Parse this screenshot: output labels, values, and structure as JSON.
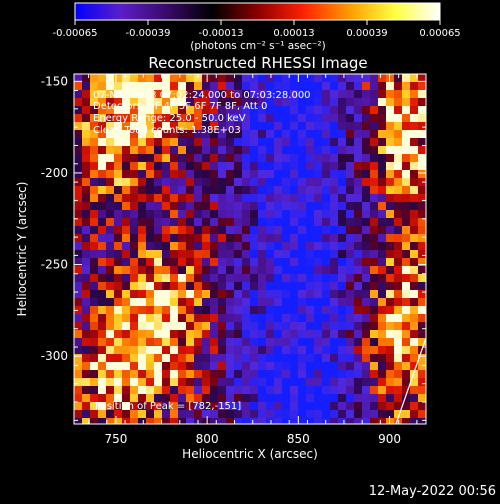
{
  "colorbar": {
    "tick_labels": [
      "-0.00065",
      "-0.00039",
      "-0.00013",
      "0.00013",
      "0.00039",
      "0.00065"
    ],
    "units": "(photons cm⁻² s⁻¹ asec⁻²)",
    "colors": [
      "#0000ff",
      "#5a1fc8",
      "#3a0a6a",
      "#000000",
      "#8a0000",
      "#ff2000",
      "#ff9a00",
      "#ffff40",
      "#ffffff"
    ]
  },
  "image": {
    "title": "Reconstructed RHESSI Image",
    "info_lines": [
      "07-Mar-2013 07:02:24.000 to 07:03:28.000",
      "Detectors: 3F 4F 5F 6F 7F 8F, Att 0",
      "Energy Range: 25.0 - 50.0 keV",
      "Clean     Total counts: 1.38E+03"
    ],
    "peak_label": "Position of Peak = [782,-151]",
    "xlabel": "Heliocentric X (arcsec)",
    "ylabel": "Heliocentric Y (arcsec)",
    "x_ticks": [
      "750",
      "800",
      "850",
      "900"
    ],
    "y_ticks": [
      "-150",
      "-200",
      "-250",
      "-300"
    ],
    "xlim": [
      727,
      920
    ],
    "ylim": [
      -337,
      -146
    ]
  },
  "footer": {
    "timestamp": "12-May-2022 00:56"
  }
}
